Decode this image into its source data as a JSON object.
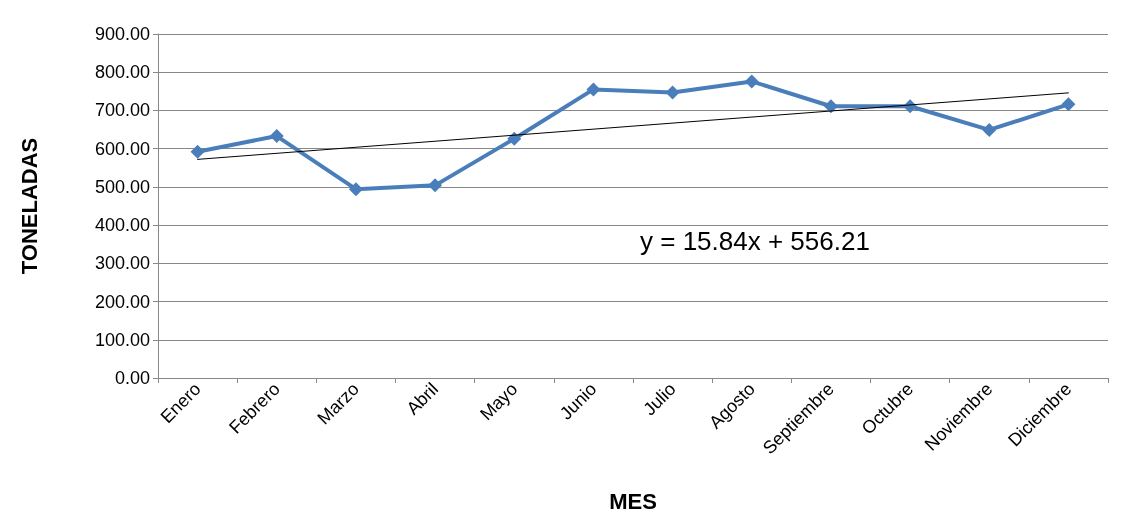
{
  "chart_data": {
    "type": "line",
    "xlabel": "MES",
    "ylabel": "TONELADAS",
    "categories": [
      "Enero",
      "Febrero",
      "Marzo",
      "Abril",
      "Mayo",
      "Junio",
      "Julio",
      "Agosto",
      "Septiembre",
      "Octubre",
      "Noviembre",
      "Diciembre"
    ],
    "series": [
      {
        "color": "#4a7ebb",
        "values": [
          592,
          633,
          494,
          504,
          626,
          755,
          747,
          776,
          711,
          711,
          649,
          716
        ],
        "marker": "diamond"
      },
      {
        "type": "line",
        "color": "#000000",
        "x": [
          "Enero",
          "Diciembre"
        ],
        "values": [
          572,
          746
        ],
        "marker": "none"
      }
    ],
    "ylim": [
      0,
      900
    ],
    "yticks": [
      {
        "value": 0,
        "label": "0.00"
      },
      {
        "value": 100,
        "label": "100.00"
      },
      {
        "value": 200,
        "label": "200.00"
      },
      {
        "value": 300,
        "label": "300.00"
      },
      {
        "value": 400,
        "label": "400.00"
      },
      {
        "value": 500,
        "label": "500.00"
      },
      {
        "value": 600,
        "label": "600.00"
      },
      {
        "value": 700,
        "label": "700.00"
      },
      {
        "value": 800,
        "label": "800.00"
      },
      {
        "value": 900,
        "label": "900.00"
      }
    ],
    "grid": "y",
    "annotations": [
      "y = 15.84x + 556.21"
    ]
  }
}
